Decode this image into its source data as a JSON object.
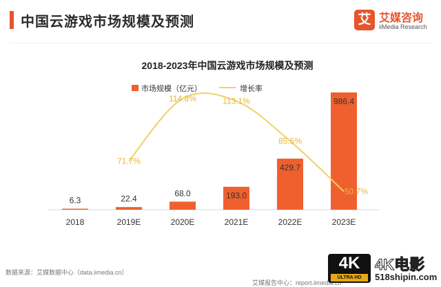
{
  "header": {
    "title": "中国云游戏市场规模及预测",
    "logo_mark": "艾",
    "logo_name": "艾媒咨询",
    "logo_en": "iiMedia Research"
  },
  "chart_data": {
    "type": "bar",
    "title": "2018-2023年中国云游戏市场规模及预测",
    "categories": [
      "2018",
      "2019E",
      "2020E",
      "2021E",
      "2022E",
      "2023E"
    ],
    "series": [
      {
        "name": "市场规模（亿元）",
        "type": "bar",
        "color": "#f0602f",
        "values": [
          6.3,
          22.4,
          68.0,
          193.0,
          429.7,
          986.4
        ],
        "labels": [
          "6.3",
          "22.4",
          "68.0",
          "193.0",
          "429.7",
          "986.4"
        ]
      },
      {
        "name": "增长率",
        "type": "line",
        "color": "#f2cf6a",
        "label_color": "#e8b832",
        "values": [
          null,
          71.7,
          114.8,
          113.1,
          85.5,
          50.7
        ],
        "labels": [
          "",
          "71.7%",
          "114.8%",
          "113.1%",
          "85.5%",
          "50.7%"
        ]
      }
    ],
    "legend_position": "top",
    "grid": false
  },
  "footer": {
    "source": "数据来源：艾媒数据中心（data.iimedia.cn）",
    "report": "艾媒报告中心：report.iimedia.cn"
  },
  "watermark": {
    "badge": "4K",
    "badge_sub": "ULTRA HD",
    "name": "4K电影",
    "url": "518shipin.com"
  }
}
